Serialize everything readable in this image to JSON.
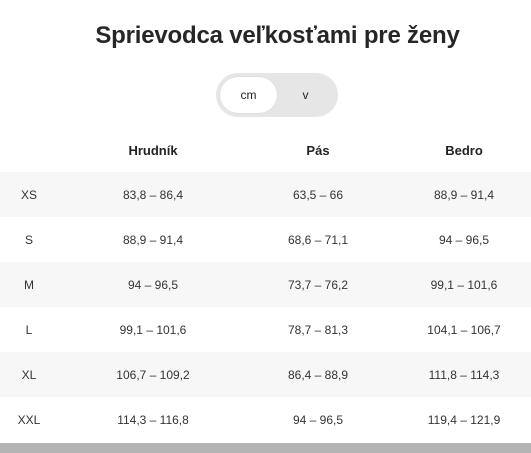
{
  "title": "Sprievodca veľkosťami pre ženy",
  "unit_toggle": {
    "options": [
      "cm",
      "v"
    ],
    "selected": "cm"
  },
  "table": {
    "columns": [
      "",
      "Hrudník",
      "Pás",
      "Bedro"
    ],
    "rows": [
      {
        "size": "XS",
        "hrudnik": "83,8 – 86,4",
        "pas": "63,5 – 66",
        "bedro": "88,9 – 91,4"
      },
      {
        "size": "S",
        "hrudnik": "88,9 – 91,4",
        "pas": "68,6 – 71,1",
        "bedro": "94 – 96,5"
      },
      {
        "size": "M",
        "hrudnik": "94 – 96,5",
        "pas": "73,7 – 76,2",
        "bedro": "99,1 – 101,6"
      },
      {
        "size": "L",
        "hrudnik": "99,1 – 101,6",
        "pas": "78,7 – 81,3",
        "bedro": "104,1 – 106,7"
      },
      {
        "size": "XL",
        "hrudnik": "106,7 – 109,2",
        "pas": "86,4 – 88,9",
        "bedro": "111,8 – 114,3"
      },
      {
        "size": "XXL",
        "hrudnik": "114,3 – 116,8",
        "pas": "94 – 96,5",
        "bedro": "119,4 – 121,9"
      }
    ]
  }
}
